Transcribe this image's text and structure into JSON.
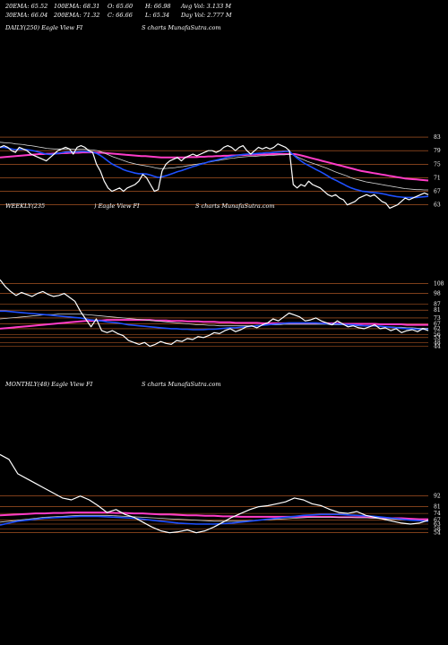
{
  "header": {
    "row1": [
      "20EMA: 65.52",
      "100EMA: 68.31",
      "O: 65.60",
      "H: 66.98",
      "Avg Vol: 3.133 M"
    ],
    "row2": [
      "30EMA: 66.04",
      "200EMA: 71.32",
      "C: 66.66",
      "L: 65.34",
      "Day Vol: 2.777 M"
    ]
  },
  "colors": {
    "price": "#ffffff",
    "ema_short": "#1e50ff",
    "ema_mid": "#d4d4d4",
    "ema_long": "#ff3cc8",
    "grid": "#c8642a"
  },
  "chart_data": [
    {
      "type": "line",
      "panel": "daily",
      "label_left": "DAILY(250) Eagle  View  FI",
      "label_right": "S charts MunafaSutra.com",
      "y_ticks": [
        83,
        79,
        75,
        71,
        67,
        63
      ],
      "ylim": [
        60,
        87
      ],
      "series": [
        {
          "role": "price",
          "values": [
            80,
            80.5,
            80,
            79,
            78.5,
            80,
            79.5,
            79,
            78,
            77.5,
            77,
            76.5,
            76,
            77,
            78,
            79,
            79.5,
            80,
            79.5,
            78,
            80,
            80.5,
            80,
            79,
            78.5,
            75,
            73,
            70,
            68,
            67,
            67.5,
            68,
            67,
            68,
            68.5,
            69,
            70,
            72,
            71,
            69,
            67,
            67.5,
            73,
            75,
            76,
            76.5,
            77,
            76,
            77,
            77.5,
            78,
            77.5,
            78,
            78.5,
            79,
            79,
            78.5,
            79,
            80,
            80.5,
            80,
            79,
            80,
            80.5,
            79,
            78,
            79,
            80,
            79.5,
            80,
            79.5,
            80,
            81,
            80.5,
            80,
            79,
            69,
            68,
            69,
            68.5,
            70,
            69,
            68.5,
            68,
            67,
            66,
            65.5,
            66,
            65,
            64.5,
            63,
            63.5,
            64,
            65,
            65.5,
            66,
            65.5,
            66,
            65,
            64,
            63.5,
            62,
            62.5,
            63,
            64,
            65,
            64.5,
            65,
            65.5,
            66,
            66.5,
            66
          ]
        },
        {
          "role": "ema_short",
          "values": [
            80,
            80,
            79.8,
            79.5,
            79.3,
            79.4,
            79.4,
            79.3,
            79.1,
            78.9,
            78.6,
            78.3,
            78,
            77.9,
            78,
            78.2,
            78.4,
            78.6,
            78.7,
            78.6,
            78.7,
            78.8,
            78.8,
            78.7,
            78.6,
            78.2,
            77.6,
            76.8,
            75.9,
            75.1,
            74.5,
            74,
            73.4,
            73,
            72.7,
            72.4,
            72.2,
            72.2,
            72.1,
            71.8,
            71.4,
            71.1,
            71.3,
            71.6,
            72,
            72.4,
            72.8,
            73.1,
            73.5,
            73.9,
            74.3,
            74.6,
            75,
            75.3,
            75.7,
            76,
            76.2,
            76.5,
            76.8,
            77.1,
            77.3,
            77.5,
            77.7,
            77.9,
            78,
            78,
            78.1,
            78.2,
            78.3,
            78.4,
            78.4,
            78.5,
            78.6,
            78.7,
            78.8,
            78.8,
            77.8,
            76.8,
            76,
            75.2,
            74.6,
            74,
            73.4,
            72.8,
            72.2,
            71.5,
            70.8,
            70.3,
            69.7,
            69.1,
            68.5,
            68,
            67.6,
            67.3,
            67,
            66.9,
            66.7,
            66.6,
            66.5,
            66.3,
            66.1,
            65.8,
            65.6,
            65.4,
            65.3,
            65.2,
            65.2,
            65.2,
            65.2,
            65.3,
            65.4,
            65.5
          ]
        },
        {
          "role": "ema_mid",
          "values": [
            81.5,
            81.4,
            81.3,
            81.2,
            81,
            80.9,
            80.8,
            80.6,
            80.5,
            80.3,
            80.1,
            79.9,
            79.7,
            79.6,
            79.5,
            79.5,
            79.5,
            79.5,
            79.5,
            79.4,
            79.4,
            79.4,
            79.4,
            79.3,
            79.2,
            79,
            78.7,
            78.2,
            77.7,
            77.2,
            76.8,
            76.4,
            76,
            75.6,
            75.3,
            75,
            74.8,
            74.6,
            74.4,
            74.2,
            73.9,
            73.7,
            73.7,
            73.8,
            73.9,
            74,
            74.2,
            74.3,
            74.5,
            74.7,
            74.9,
            75.1,
            75.3,
            75.5,
            75.7,
            75.9,
            76.1,
            76.3,
            76.5,
            76.7,
            76.8,
            77,
            77.1,
            77.2,
            77.3,
            77.3,
            77.4,
            77.5,
            77.5,
            77.6,
            77.6,
            77.7,
            77.8,
            77.8,
            77.9,
            77.9,
            77.4,
            76.8,
            76.3,
            75.8,
            75.4,
            75,
            74.6,
            74.2,
            73.8,
            73.3,
            72.8,
            72.4,
            72,
            71.6,
            71.1,
            70.7,
            70.4,
            70.1,
            69.8,
            69.6,
            69.4,
            69.2,
            69,
            68.8,
            68.6,
            68.4,
            68.2,
            68,
            67.8,
            67.7,
            67.6,
            67.5,
            67.5,
            67.4,
            67.4
          ]
        },
        {
          "role": "ema_long",
          "values": [
            77,
            77.1,
            77.2,
            77.3,
            77.4,
            77.5,
            77.6,
            77.7,
            77.8,
            77.9,
            78,
            78,
            78.1,
            78.1,
            78.2,
            78.2,
            78.3,
            78.3,
            78.4,
            78.4,
            78.4,
            78.5,
            78.5,
            78.5,
            78.5,
            78.4,
            78.4,
            78.3,
            78.2,
            78.1,
            78,
            77.9,
            77.8,
            77.7,
            77.6,
            77.5,
            77.4,
            77.4,
            77.3,
            77.2,
            77.1,
            77,
            77,
            77,
            77,
            77,
            77,
            77,
            77.1,
            77.1,
            77.1,
            77.2,
            77.2,
            77.3,
            77.3,
            77.4,
            77.4,
            77.5,
            77.5,
            77.6,
            77.6,
            77.7,
            77.7,
            77.8,
            77.8,
            77.8,
            77.9,
            77.9,
            77.9,
            78,
            78,
            78,
            78,
            78,
            78,
            78,
            77.8,
            77.5,
            77.2,
            76.9,
            76.6,
            76.3,
            76,
            75.7,
            75.4,
            75.1,
            74.8,
            74.5,
            74.2,
            73.9,
            73.6,
            73.3,
            73,
            72.8,
            72.6,
            72.4,
            72.2,
            72,
            71.8,
            71.6,
            71.4,
            71.2,
            71,
            70.8,
            70.7,
            70.6,
            70.5,
            70.4,
            70.3,
            70.2
          ]
        }
      ]
    },
    {
      "type": "line",
      "panel": "weekly",
      "label_left": "WEEKLY(235",
      "label_mid": ") Eagle  View  FI",
      "label_right": "S charts MunafaSutra.com",
      "y_ticks": [
        108,
        98,
        87,
        81,
        73,
        67,
        62,
        56,
        53,
        48,
        44
      ],
      "ylim": [
        40,
        115
      ],
      "series": [
        {
          "role": "price",
          "values": [
            112,
            105,
            100,
            96,
            99,
            97,
            95,
            98,
            100,
            97,
            95,
            96,
            98,
            94,
            90,
            80,
            72,
            64,
            72,
            60,
            58,
            60,
            57,
            55,
            50,
            48,
            46,
            48,
            44,
            46,
            49,
            47,
            46,
            50,
            49,
            52,
            51,
            54,
            53,
            55,
            58,
            57,
            60,
            62,
            59,
            61,
            64,
            65,
            63,
            66,
            68,
            72,
            70,
            74,
            78,
            76,
            74,
            70,
            71,
            73,
            70,
            68,
            66,
            70,
            67,
            64,
            65,
            63,
            62,
            64,
            66,
            62,
            63,
            60,
            62,
            58,
            60,
            61,
            59,
            62,
            60
          ]
        },
        {
          "role": "ema_short",
          "values": [
            80,
            80,
            79.5,
            79,
            78.5,
            78,
            77.5,
            77,
            76.5,
            76,
            75.5,
            75,
            74.5,
            74,
            73.5,
            73,
            72,
            71,
            70.5,
            70,
            69,
            68.5,
            68,
            67,
            66,
            65.5,
            65,
            64.5,
            64,
            63.5,
            63,
            62.5,
            62,
            62,
            61.5,
            61.5,
            61,
            61,
            61,
            61.5,
            61.5,
            62,
            62.5,
            63,
            63,
            63.5,
            64,
            64.5,
            65,
            65.5,
            66,
            66.5,
            67,
            67.5,
            68,
            68,
            68,
            68,
            68,
            68,
            67.5,
            67,
            67,
            67,
            66.5,
            66,
            66,
            65.5,
            65,
            65,
            65,
            64.5,
            64,
            63.5,
            63,
            62.5,
            62,
            62,
            61.5,
            61.5,
            61.5
          ]
        },
        {
          "role": "ema_mid",
          "values": [
            72,
            72.5,
            73,
            73.5,
            74,
            74.5,
            75,
            75.5,
            76,
            76.5,
            76.5,
            77,
            77,
            77,
            77,
            77,
            76.5,
            76,
            75.5,
            75,
            74.5,
            74,
            73.5,
            73,
            72.5,
            72,
            71.5,
            71,
            70.5,
            70,
            69.5,
            69,
            68.5,
            68,
            67.5,
            67,
            66.5,
            66,
            66,
            65.5,
            65.5,
            65,
            65,
            65,
            65,
            65,
            65,
            65,
            65.5,
            65.5,
            66,
            66,
            66,
            66.5,
            66.5,
            66.5,
            66.5,
            66.5,
            66.5,
            66.5,
            66.5,
            66.5,
            66,
            66,
            66,
            65.5,
            65.5,
            65,
            65,
            65,
            64.5,
            64.5,
            64,
            64,
            63.5,
            63.5,
            63,
            63,
            62.5,
            62.5,
            62.5
          ]
        },
        {
          "role": "ema_long",
          "values": [
            62,
            62.5,
            63,
            63.5,
            64,
            64.5,
            65,
            65.5,
            66,
            66.5,
            67,
            67.5,
            68,
            68.5,
            69,
            69.5,
            70,
            70,
            70.5,
            70.5,
            71,
            71,
            71,
            71,
            71,
            71,
            71,
            71,
            71,
            70.5,
            70.5,
            70.5,
            70,
            70,
            70,
            69.5,
            69.5,
            69.5,
            69,
            69,
            69,
            68.5,
            68.5,
            68.5,
            68,
            68,
            68,
            68,
            68,
            67.5,
            67.5,
            67.5,
            67.5,
            67.5,
            67.5,
            67.5,
            67.5,
            67.5,
            67.5,
            67.5,
            67.5,
            67.5,
            67.5,
            67.5,
            67,
            67,
            67,
            67,
            67,
            67,
            67,
            66.5,
            66.5,
            66.5,
            66.5,
            66.5,
            66,
            66,
            66,
            66,
            66
          ]
        }
      ]
    },
    {
      "type": "line",
      "panel": "monthly",
      "label_left": "MONTHLY(48) Eagle  View  FI",
      "label_right": "S charts MunafaSutra.com",
      "y_ticks": [
        92,
        81,
        74,
        67,
        63,
        58,
        54
      ],
      "ylim": [
        50,
        140
      ],
      "series": [
        {
          "role": "price",
          "values": [
            135,
            130,
            115,
            110,
            105,
            100,
            95,
            90,
            88,
            92,
            88,
            82,
            75,
            78,
            73,
            70,
            65,
            60,
            56,
            54,
            55,
            57,
            54,
            56,
            60,
            65,
            70,
            74,
            78,
            81,
            82,
            84,
            86,
            90,
            88,
            84,
            82,
            78,
            75,
            74,
            76,
            72,
            70,
            68,
            66,
            64,
            63,
            64,
            67
          ]
        },
        {
          "role": "ema_short",
          "values": [
            62,
            64,
            66,
            67,
            68,
            69,
            69.5,
            70,
            70.5,
            71,
            71,
            71,
            70.5,
            70,
            69.5,
            69,
            68,
            67,
            66,
            65,
            64,
            63.5,
            63,
            63,
            63,
            63.5,
            64,
            65,
            66,
            67,
            68,
            69,
            70,
            71,
            72,
            72.5,
            73,
            73,
            73,
            72.5,
            72,
            71.5,
            71,
            70,
            69,
            68,
            67,
            66.5,
            66
          ]
        },
        {
          "role": "ema_mid",
          "values": [
            65,
            66,
            67,
            68,
            69,
            70,
            70.5,
            71,
            71.5,
            72,
            72,
            72,
            72,
            71.5,
            71,
            70.5,
            70,
            69.5,
            69,
            68.5,
            68,
            67.5,
            67,
            66.5,
            66,
            66,
            66,
            66,
            66.5,
            67,
            67.5,
            68,
            68.5,
            69,
            69.5,
            70,
            70,
            70,
            70,
            70,
            69.5,
            69.5,
            69,
            68.5,
            68,
            67.5,
            67,
            66.5,
            66
          ]
        },
        {
          "role": "ema_long",
          "values": [
            72,
            72.5,
            73,
            73.5,
            74,
            74,
            74.5,
            74.5,
            75,
            75,
            75,
            75,
            75,
            74.5,
            74.5,
            74,
            74,
            73.5,
            73,
            73,
            72.5,
            72,
            72,
            71.5,
            71.5,
            71,
            71,
            70.5,
            70.5,
            70.5,
            70.5,
            70.5,
            70.5,
            70.5,
            70.5,
            70.5,
            70.5,
            70.5,
            70,
            70,
            70,
            70,
            69.5,
            69.5,
            69,
            69,
            68.5,
            68,
            68
          ]
        }
      ]
    }
  ]
}
